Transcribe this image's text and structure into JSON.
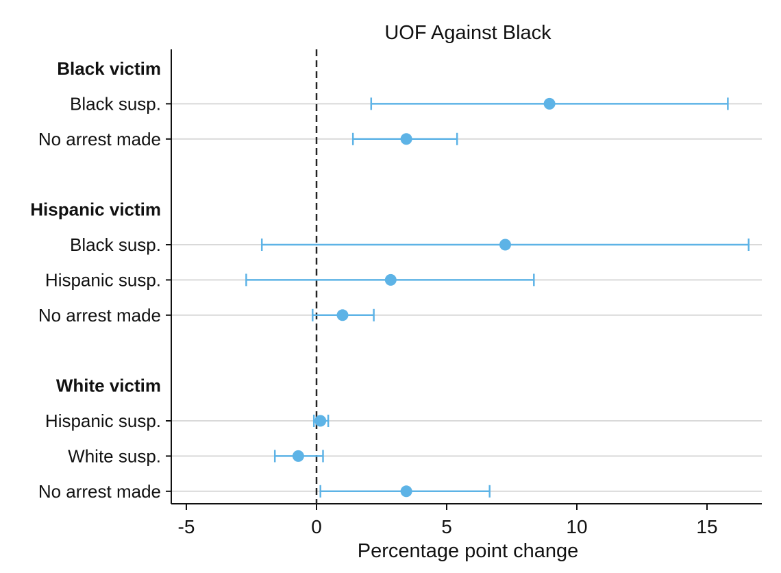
{
  "chart_data": {
    "type": "scatter",
    "subtype": "coefficient plot with confidence intervals",
    "title": "UOF Against Black",
    "xlabel": "Percentage point change",
    "xlim": [
      -5.2,
      17.0
    ],
    "xticks": [
      -5,
      0,
      5,
      10,
      15
    ],
    "xtick_labels": [
      "-5",
      "0",
      "5",
      "10",
      "15"
    ],
    "reference_line": 0,
    "grid": "horizontal gridlines at each row",
    "colors": {
      "point": "#5db3e6",
      "grid": "#d9d9d9",
      "axis": "#111111"
    },
    "groups": [
      {
        "label": "Black victim",
        "rows": [
          {
            "label": "Black susp.",
            "estimate": 8.95,
            "ci_low": 2.1,
            "ci_high": 15.8
          },
          {
            "label": "No arrest made",
            "estimate": 3.45,
            "ci_low": 1.4,
            "ci_high": 5.4
          }
        ]
      },
      {
        "label": "Hispanic victim",
        "rows": [
          {
            "label": "Black susp.",
            "estimate": 7.25,
            "ci_low": -2.1,
            "ci_high": 16.6
          },
          {
            "label": "Hispanic susp.",
            "estimate": 2.85,
            "ci_low": -2.7,
            "ci_high": 8.35
          },
          {
            "label": "No arrest made",
            "estimate": 1.0,
            "ci_low": -0.15,
            "ci_high": 2.2
          }
        ]
      },
      {
        "label": "White victim",
        "rows": [
          {
            "label": "Hispanic susp.",
            "estimate": 0.15,
            "ci_low": -0.1,
            "ci_high": 0.45
          },
          {
            "label": "White susp.",
            "estimate": -0.7,
            "ci_low": -1.6,
            "ci_high": 0.25
          },
          {
            "label": "No arrest made",
            "estimate": 3.45,
            "ci_low": 0.15,
            "ci_high": 6.65
          }
        ]
      }
    ]
  }
}
